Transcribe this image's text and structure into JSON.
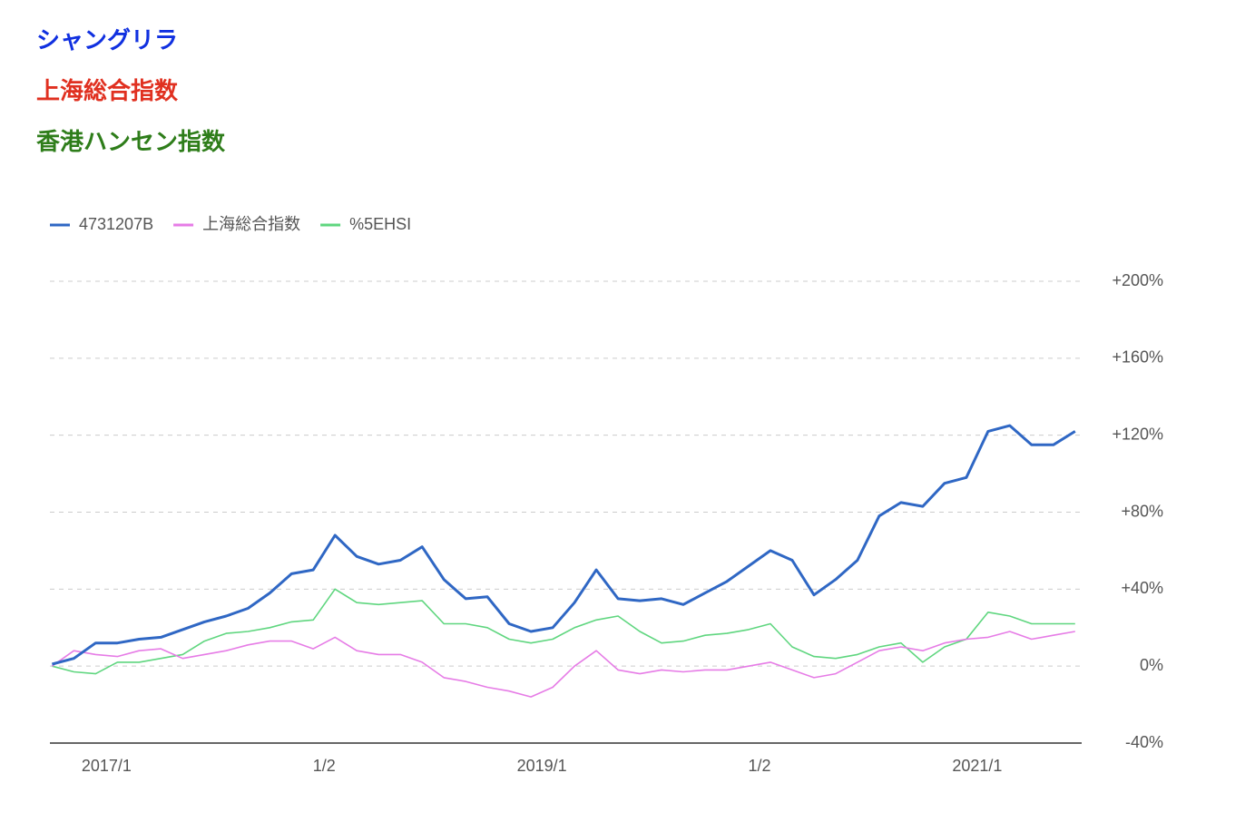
{
  "headings": [
    {
      "text": "シャングリラ",
      "color": "#1030e0"
    },
    {
      "text": "上海総合指数",
      "color": "#e03020"
    },
    {
      "text": "香港ハンセン指数",
      "color": "#2e7d1a"
    }
  ],
  "chart_data": {
    "type": "line",
    "x": [
      2016.75,
      2016.85,
      2016.95,
      2017.05,
      2017.15,
      2017.25,
      2017.35,
      2017.45,
      2017.55,
      2017.65,
      2017.75,
      2017.85,
      2017.95,
      2018.05,
      2018.15,
      2018.25,
      2018.35,
      2018.45,
      2018.55,
      2018.65,
      2018.75,
      2018.85,
      2018.95,
      2019.05,
      2019.15,
      2019.25,
      2019.35,
      2019.45,
      2019.55,
      2019.65,
      2019.75,
      2019.85,
      2019.95,
      2020.05,
      2020.15,
      2020.25,
      2020.35,
      2020.45,
      2020.55,
      2020.65,
      2020.75,
      2020.85,
      2020.95,
      2021.05,
      2021.15,
      2021.25,
      2021.35,
      2021.45
    ],
    "series": [
      {
        "name": "4731207B",
        "color": "#2f67c4",
        "values": [
          1,
          4,
          12,
          12,
          14,
          15,
          19,
          23,
          26,
          30,
          38,
          48,
          50,
          68,
          57,
          53,
          55,
          62,
          45,
          35,
          36,
          22,
          18,
          20,
          33,
          50,
          35,
          34,
          35,
          32,
          38,
          44,
          52,
          60,
          55,
          37,
          45,
          55,
          78,
          85,
          83,
          95,
          98,
          122,
          125,
          115,
          115,
          122
        ]
      },
      {
        "name": "上海総合指数",
        "color": "#e67ce6",
        "values": [
          0,
          8,
          6,
          5,
          8,
          9,
          4,
          6,
          8,
          11,
          13,
          13,
          9,
          15,
          8,
          6,
          6,
          2,
          -6,
          -8,
          -11,
          -13,
          -16,
          -11,
          0,
          8,
          -2,
          -4,
          -2,
          -3,
          -2,
          -2,
          0,
          2,
          -2,
          -6,
          -4,
          2,
          8,
          10,
          8,
          12,
          14,
          15,
          18,
          14,
          16,
          18
        ]
      },
      {
        "name": "%5EHSI",
        "color": "#5fd67f",
        "values": [
          0,
          -3,
          -4,
          2,
          2,
          4,
          6,
          13,
          17,
          18,
          20,
          23,
          24,
          40,
          33,
          32,
          33,
          34,
          22,
          22,
          20,
          14,
          12,
          14,
          20,
          24,
          26,
          18,
          12,
          13,
          16,
          17,
          19,
          22,
          10,
          5,
          4,
          6,
          10,
          12,
          2,
          10,
          14,
          28,
          26,
          22,
          22,
          22
        ]
      }
    ],
    "xlim": [
      2016.74,
      2021.48
    ],
    "xticks": [
      {
        "value": 2017,
        "label": "2017/1"
      },
      {
        "value": 2018,
        "label": "1/2"
      },
      {
        "value": 2019,
        "label": "2019/1"
      },
      {
        "value": 2020,
        "label": "1/2"
      },
      {
        "value": 2021,
        "label": "2021/1"
      }
    ],
    "ylim": [
      -40,
      200
    ],
    "yticks": [
      {
        "value": -40,
        "label": "-40%"
      },
      {
        "value": 0,
        "label": "0%"
      },
      {
        "value": 40,
        "label": "+40%"
      },
      {
        "value": 80,
        "label": "+80%"
      },
      {
        "value": 120,
        "label": "+120%"
      },
      {
        "value": 160,
        "label": "+160%"
      },
      {
        "value": 200,
        "label": "+200%"
      }
    ],
    "grid": true,
    "legend": "top-left"
  }
}
